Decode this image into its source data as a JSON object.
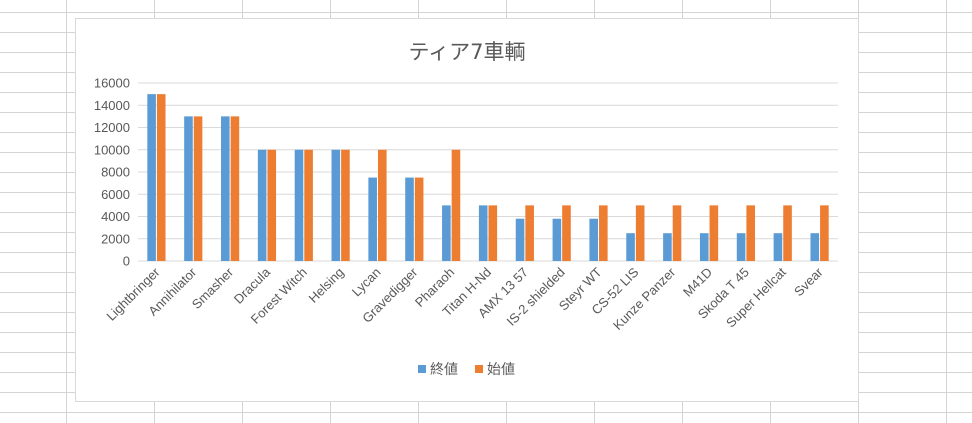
{
  "chart_data": {
    "type": "bar",
    "title": "ティア7車輌",
    "xlabel": "",
    "ylabel": "",
    "ylim": [
      0,
      16000
    ],
    "yticks": [
      0,
      2000,
      4000,
      6000,
      8000,
      10000,
      12000,
      14000,
      16000
    ],
    "grid": true,
    "legend_position": "bottom",
    "categories": [
      "Lightbringer",
      "Annihilator",
      "Smasher",
      "Dracula",
      "Forest Witch",
      "Helsing",
      "Lycan",
      "Gravedigger",
      "Pharaoh",
      "Titan H-Nd",
      "AMX 13 57",
      "IS-2 shielded",
      "Steyr WT",
      "CS-52 LIS",
      "Kunze Panzer",
      "M41D",
      "Skoda T 45",
      "Super Hellcat",
      "Svear"
    ],
    "series": [
      {
        "name": "終値",
        "color": "#5b9bd5",
        "values": [
          15000,
          13000,
          13000,
          10000,
          10000,
          10000,
          7500,
          7500,
          5000,
          5000,
          3800,
          3800,
          3800,
          2500,
          2500,
          2500,
          2500,
          2500,
          2500
        ]
      },
      {
        "name": "始値",
        "color": "#ed7d31",
        "values": [
          15000,
          13000,
          13000,
          10000,
          10000,
          10000,
          10000,
          7500,
          10000,
          5000,
          5000,
          5000,
          5000,
          5000,
          5000,
          5000,
          5000,
          5000,
          5000
        ]
      }
    ]
  }
}
